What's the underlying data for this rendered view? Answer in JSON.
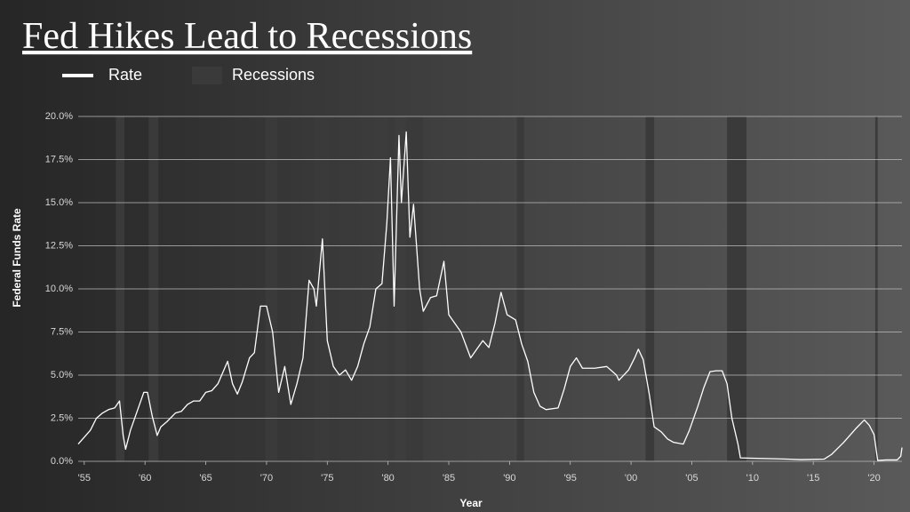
{
  "chart_data": {
    "type": "line",
    "title": "Fed Hikes Lead to Recessions",
    "ylabel": "Federal Funds Rate",
    "xlabel": "Year",
    "xlim": [
      1954.5,
      2022.3
    ],
    "ylim": [
      0,
      20
    ],
    "xticks": [
      {
        "value": 1955,
        "label": "'55"
      },
      {
        "value": 1960,
        "label": "'60"
      },
      {
        "value": 1965,
        "label": "'65"
      },
      {
        "value": 1970,
        "label": "'70"
      },
      {
        "value": 1975,
        "label": "'75"
      },
      {
        "value": 1980,
        "label": "'80"
      },
      {
        "value": 1985,
        "label": "'85"
      },
      {
        "value": 1990,
        "label": "'90"
      },
      {
        "value": 1995,
        "label": "'95"
      },
      {
        "value": 2000,
        "label": "'00"
      },
      {
        "value": 2005,
        "label": "'05"
      },
      {
        "value": 2010,
        "label": "'10"
      },
      {
        "value": 2015,
        "label": "'15"
      },
      {
        "value": 2020,
        "label": "'20"
      }
    ],
    "yticks": [
      {
        "value": 0,
        "label": "0.0%"
      },
      {
        "value": 2.5,
        "label": "2.5%"
      },
      {
        "value": 5,
        "label": "5.0%"
      },
      {
        "value": 7.5,
        "label": "7.5%"
      },
      {
        "value": 10,
        "label": "10.0%"
      },
      {
        "value": 12.5,
        "label": "12.5%"
      },
      {
        "value": 15,
        "label": "15.0%"
      },
      {
        "value": 17.5,
        "label": "17.5%"
      },
      {
        "value": 20,
        "label": "20.0%"
      }
    ],
    "grid": true,
    "legend": "top-left",
    "x": [
      1954.5,
      1955.0,
      1955.5,
      1956.0,
      1956.5,
      1957.0,
      1957.5,
      1957.9,
      1958.2,
      1958.4,
      1958.8,
      1959.3,
      1959.9,
      1960.2,
      1960.6,
      1961.0,
      1961.3,
      1961.8,
      1962.5,
      1963.0,
      1963.5,
      1964.0,
      1964.5,
      1965.0,
      1965.5,
      1966.0,
      1966.8,
      1967.2,
      1967.6,
      1968.0,
      1968.6,
      1969.0,
      1969.5,
      1970.0,
      1970.5,
      1971.0,
      1971.5,
      1972.0,
      1972.5,
      1973.0,
      1973.5,
      1973.9,
      1974.1,
      1974.6,
      1975.0,
      1975.5,
      1976.0,
      1976.5,
      1977.0,
      1977.5,
      1978.0,
      1978.5,
      1979.0,
      1979.5,
      1979.9,
      1980.2,
      1980.5,
      1980.9,
      1981.1,
      1981.5,
      1981.8,
      1982.1,
      1982.6,
      1982.9,
      1983.5,
      1984.0,
      1984.6,
      1985.0,
      1985.6,
      1986.0,
      1986.8,
      1987.3,
      1987.8,
      1988.3,
      1988.8,
      1989.3,
      1989.8,
      1990.5,
      1991.0,
      1991.5,
      1992.0,
      1992.5,
      1993.0,
      1994.0,
      1994.5,
      1995.0,
      1995.5,
      1996.0,
      1997.0,
      1998.0,
      1998.8,
      1999.0,
      1999.8,
      2000.3,
      2000.6,
      2001.0,
      2001.5,
      2001.9,
      2002.5,
      2003.0,
      2003.5,
      2004.3,
      2004.8,
      2005.5,
      2006.0,
      2006.5,
      2007.0,
      2007.5,
      2007.9,
      2008.3,
      2008.8,
      2009.0,
      2010.0,
      2012.0,
      2014.0,
      2015.9,
      2016.5,
      2017.5,
      2018.5,
      2019.2,
      2019.6,
      2020.0,
      2020.3,
      2021.0,
      2021.9,
      2022.2,
      2022.3
    ],
    "series": [
      {
        "name": "Rate",
        "color": "#ffffff",
        "values": [
          1.0,
          1.4,
          1.8,
          2.5,
          2.8,
          3.0,
          3.1,
          3.5,
          1.5,
          0.7,
          1.8,
          2.8,
          4.0,
          4.0,
          2.6,
          1.5,
          2.0,
          2.3,
          2.8,
          2.9,
          3.3,
          3.5,
          3.5,
          4.0,
          4.1,
          4.5,
          5.8,
          4.5,
          3.9,
          4.6,
          6.0,
          6.3,
          9.0,
          9.0,
          7.5,
          4.0,
          5.5,
          3.3,
          4.5,
          6.0,
          10.5,
          10.0,
          9.0,
          12.9,
          7.0,
          5.5,
          5.0,
          5.3,
          4.7,
          5.5,
          6.8,
          7.8,
          10.0,
          10.3,
          13.8,
          17.6,
          9.0,
          18.9,
          15.0,
          19.1,
          13.0,
          14.9,
          10.0,
          8.7,
          9.5,
          9.6,
          11.6,
          8.5,
          7.9,
          7.5,
          6.0,
          6.5,
          7.0,
          6.6,
          8.0,
          9.8,
          8.5,
          8.2,
          6.8,
          5.8,
          4.0,
          3.2,
          3.0,
          3.1,
          4.2,
          5.5,
          6.0,
          5.4,
          5.4,
          5.5,
          5.0,
          4.7,
          5.3,
          6.0,
          6.5,
          5.9,
          3.9,
          2.0,
          1.7,
          1.3,
          1.1,
          1.0,
          1.8,
          3.2,
          4.3,
          5.2,
          5.25,
          5.25,
          4.5,
          2.5,
          1.0,
          0.2,
          0.18,
          0.15,
          0.1,
          0.13,
          0.4,
          1.1,
          1.9,
          2.4,
          2.1,
          1.55,
          0.05,
          0.08,
          0.08,
          0.3,
          0.8
        ]
      }
    ],
    "recessions": {
      "name": "Recessions",
      "color": "#3a3a3a",
      "periods": [
        [
          1957.6,
          1958.3
        ],
        [
          1960.3,
          1961.1
        ],
        [
          1969.9,
          1970.9
        ],
        [
          1973.9,
          1975.2
        ],
        [
          1980.0,
          1980.5
        ],
        [
          1981.5,
          1982.9
        ],
        [
          1990.6,
          1991.2
        ],
        [
          2001.2,
          2001.9
        ],
        [
          2007.9,
          2009.5
        ],
        [
          2020.1,
          2020.3
        ]
      ]
    }
  }
}
